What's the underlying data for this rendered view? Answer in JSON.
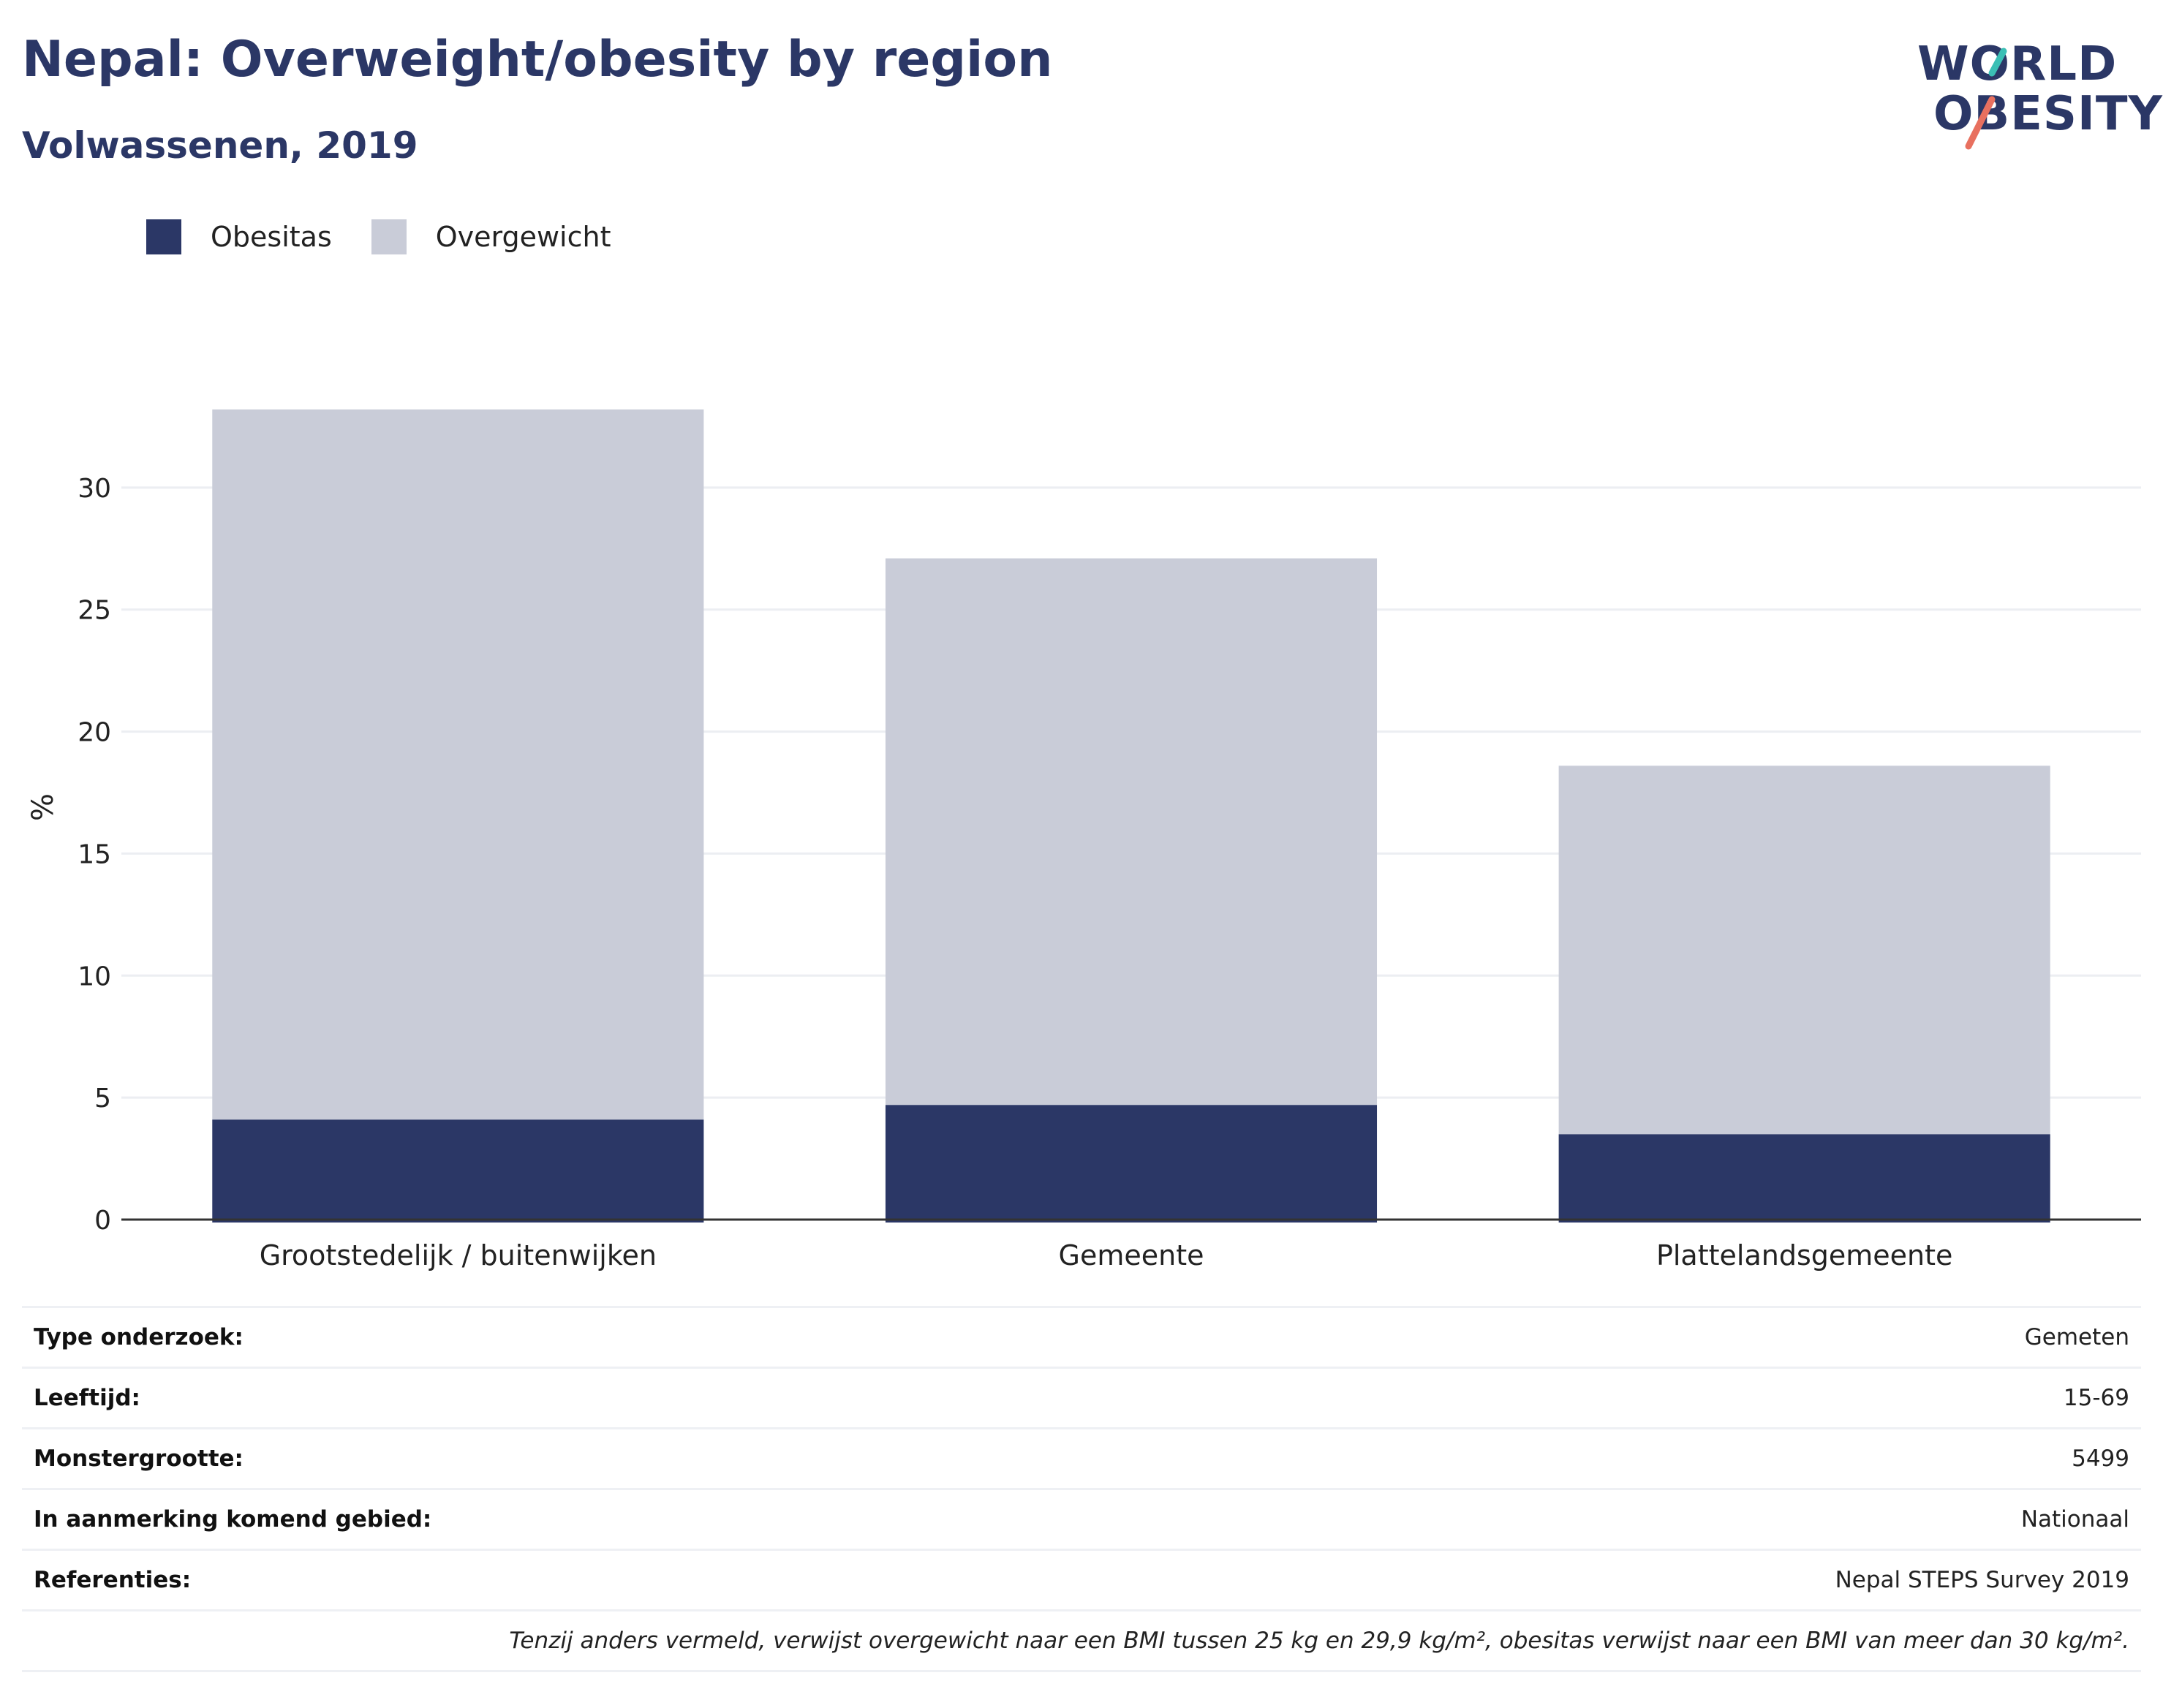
{
  "title": "Nepal: Overweight/obesity by region",
  "subtitle": "Volwassenen, 2019",
  "logo": {
    "line1": "WORLD",
    "line2": "OBESITY",
    "accent_teal": "#3bbfb5",
    "accent_coral": "#e8705f"
  },
  "colors": {
    "obesity": "#2b3766",
    "overweight": "#c9ccd8",
    "grid": "#eceef2",
    "axis": "#333333",
    "title": "#2b3766"
  },
  "legend": [
    {
      "label": "Obesitas",
      "color": "#2b3766"
    },
    {
      "label": "Overgewicht",
      "color": "#c9ccd8"
    }
  ],
  "chart_data": {
    "type": "bar",
    "stacked": true,
    "categories": [
      "Grootstedelijk / buitenwijken",
      "Gemeente",
      "Plattelandsgemeente"
    ],
    "series": [
      {
        "name": "Obesitas",
        "values": [
          4.1,
          4.7,
          3.5
        ]
      },
      {
        "name": "Overgewicht",
        "values": [
          29.1,
          22.4,
          15.1
        ]
      }
    ],
    "ylabel": "%",
    "ylim": [
      0,
      35
    ],
    "yticks": [
      0,
      5,
      10,
      15,
      20,
      25,
      30
    ],
    "grid": true,
    "legend_position": "top-left"
  },
  "meta": {
    "rows": [
      {
        "key": "Type onderzoek:",
        "value": "Gemeten"
      },
      {
        "key": "Leeftijd:",
        "value": "15-69"
      },
      {
        "key": "Monstergrootte:",
        "value": "5499"
      },
      {
        "key": "In aanmerking komend gebied:",
        "value": "Nationaal"
      },
      {
        "key": "Referenties:",
        "value": "Nepal STEPS Survey 2019"
      }
    ],
    "note": "Tenzij anders vermeld, verwijst overgewicht naar een BMI tussen 25 kg en 29,9 kg/m², obesitas verwijst naar een BMI van meer dan 30 kg/m²."
  }
}
